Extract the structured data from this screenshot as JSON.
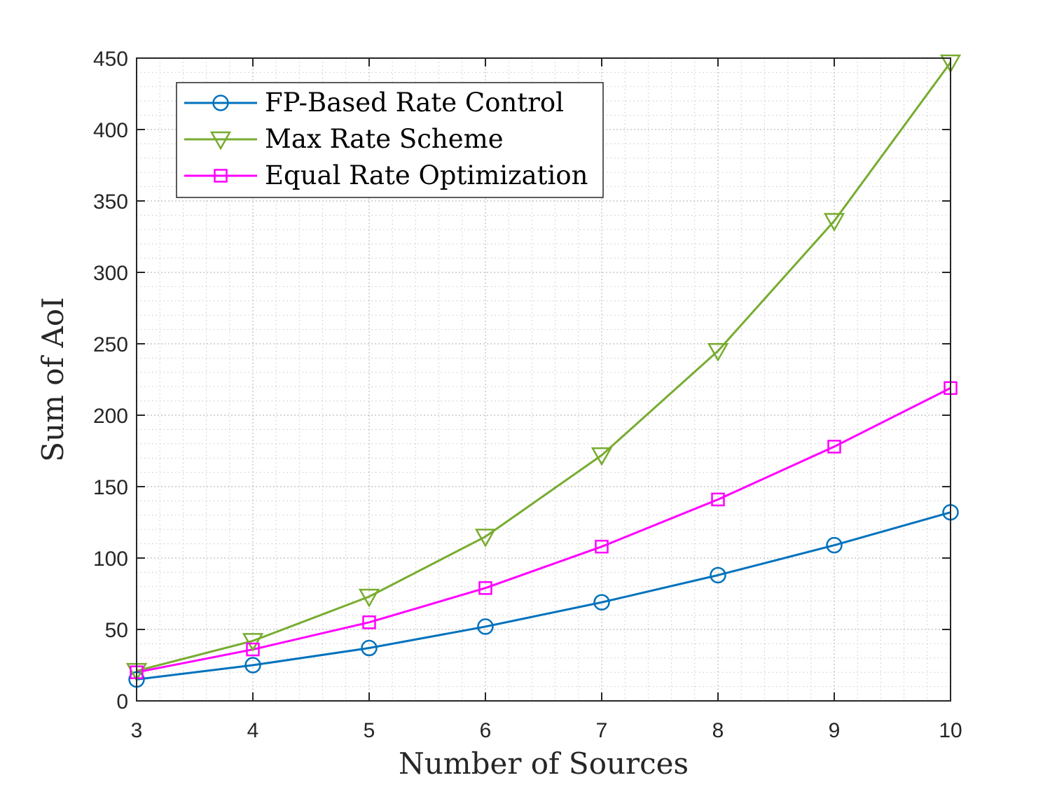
{
  "chart_data": {
    "type": "line",
    "title": "",
    "xlabel": "Number of Sources",
    "ylabel": "Sum of AoI",
    "x": [
      3,
      4,
      5,
      6,
      7,
      8,
      9,
      10
    ],
    "xlim": [
      3,
      10
    ],
    "ylim": [
      0,
      450
    ],
    "xticks": [
      3,
      4,
      5,
      6,
      7,
      8,
      9,
      10
    ],
    "yticks": [
      0,
      50,
      100,
      150,
      200,
      250,
      300,
      350,
      400,
      450
    ],
    "grid": true,
    "minor_grid": true,
    "legend_position": "top-left",
    "series": [
      {
        "name": "FP-Based Rate Control",
        "marker": "circle",
        "color": "#0072BD",
        "values": [
          15,
          25,
          37,
          52,
          69,
          88,
          109,
          132
        ]
      },
      {
        "name": "Max Rate Scheme",
        "marker": "triangle-down",
        "color": "#77AC30",
        "values": [
          21,
          42,
          73,
          115,
          172,
          245,
          336,
          447
        ]
      },
      {
        "name": "Equal Rate Optimization",
        "marker": "square",
        "color": "#FF00FF",
        "values": [
          20,
          36,
          55,
          79,
          108,
          141,
          178,
          219
        ]
      }
    ]
  }
}
